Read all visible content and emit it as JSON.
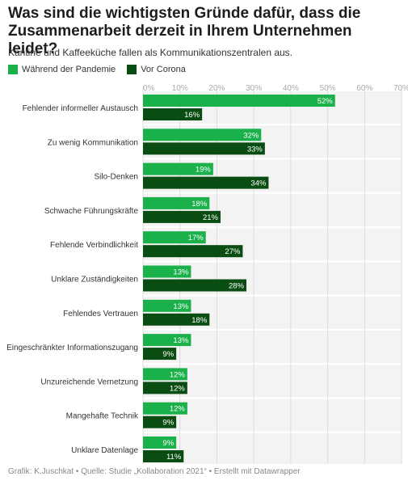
{
  "header": {
    "title": "Was sind die wichtigsten Gründe dafür, dass die Zusammenarbeit derzeit in Ihrem Unternehmen leidet?",
    "subtitle": "Kantine und Kaffeeküche fallen als Kommunikationszentralen aus."
  },
  "colors": {
    "series_1": "#1ab04a",
    "series_2": "#0a4d12",
    "band": "#f3f3f3",
    "gridline": "#dddddd"
  },
  "chart_data": {
    "type": "bar",
    "orientation": "horizontal",
    "categories": [
      "Fehlender informeller Austausch",
      "Zu wenig Kommunikation",
      "Silo-Denken",
      "Schwache Führungskräfte",
      "Fehlende Verbindlichkeit",
      "Unklare Zuständigkeiten",
      "Fehlendes Vertrauen",
      "Eingeschränkter Informationszugang",
      "Unzureichende Vernetzung",
      "Mangehafte Technik",
      "Unklare Datenlage"
    ],
    "series": [
      {
        "name": "Während der Pandemie",
        "values": [
          52,
          32,
          19,
          18,
          17,
          13,
          13,
          13,
          12,
          12,
          9
        ]
      },
      {
        "name": "Vor Corona",
        "values": [
          16,
          33,
          34,
          21,
          27,
          28,
          18,
          9,
          12,
          9,
          11
        ]
      }
    ],
    "xlim": [
      0,
      70
    ],
    "ticks": [
      "0%",
      "10%",
      "20%",
      "30%",
      "40%",
      "50%",
      "60%",
      "70%"
    ],
    "value_suffix": "%",
    "legend_position": "top-left",
    "grid": true
  },
  "footer": {
    "source": "Grafik: K.Juschkat • Quelle: Studie „Kollaboration 2021“ • Erstellt mit Datawrapper"
  }
}
